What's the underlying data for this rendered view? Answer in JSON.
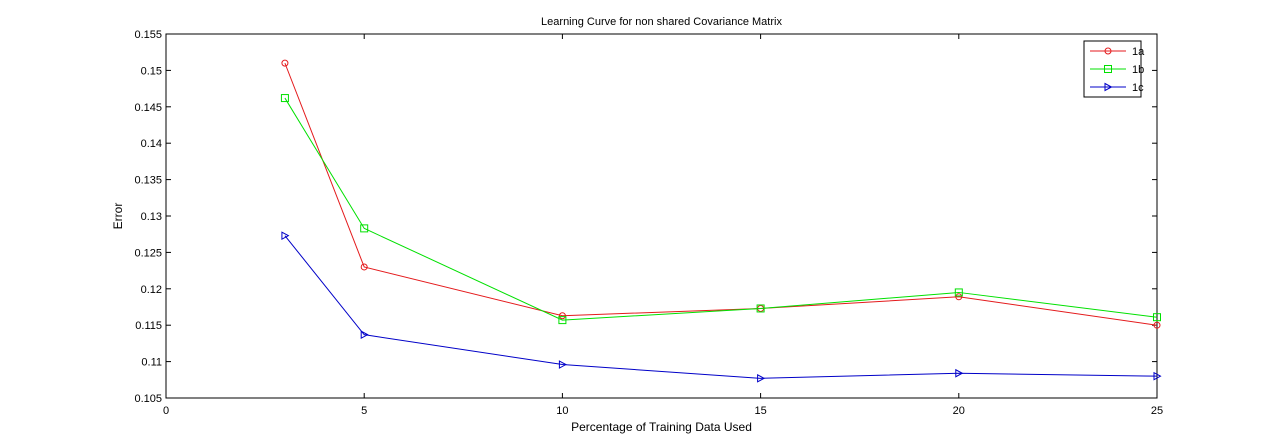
{
  "chart_data": {
    "type": "line",
    "title": "Learning Curve for non shared Covariance Matrix",
    "xlabel": "Percentage of Training Data Used",
    "ylabel": "Error",
    "xlim": [
      0,
      25
    ],
    "ylim": [
      0.105,
      0.155
    ],
    "x_ticks": [
      "0",
      "5",
      "10",
      "15",
      "20",
      "25"
    ],
    "y_ticks": [
      "0.105",
      "0.11",
      "0.115",
      "0.12",
      "0.125",
      "0.13",
      "0.135",
      "0.14",
      "0.145",
      "0.15",
      "0.155"
    ],
    "x": [
      3,
      5,
      10,
      15,
      20,
      25
    ],
    "grid": false,
    "legend_position": "top-right",
    "series": [
      {
        "name": "1a",
        "color": "#e41a1c",
        "marker": "circle",
        "values": [
          0.151,
          0.123,
          0.1163,
          0.1173,
          0.1189,
          0.115
        ]
      },
      {
        "name": "1b",
        "color": "#00e000",
        "marker": "square",
        "values": [
          0.1462,
          0.1283,
          0.1157,
          0.1173,
          0.1195,
          0.1161
        ]
      },
      {
        "name": "1c",
        "color": "#0000c8",
        "marker": "triangle-right",
        "values": [
          0.1273,
          0.1137,
          0.1096,
          0.1077,
          0.1084,
          0.108
        ]
      }
    ]
  }
}
